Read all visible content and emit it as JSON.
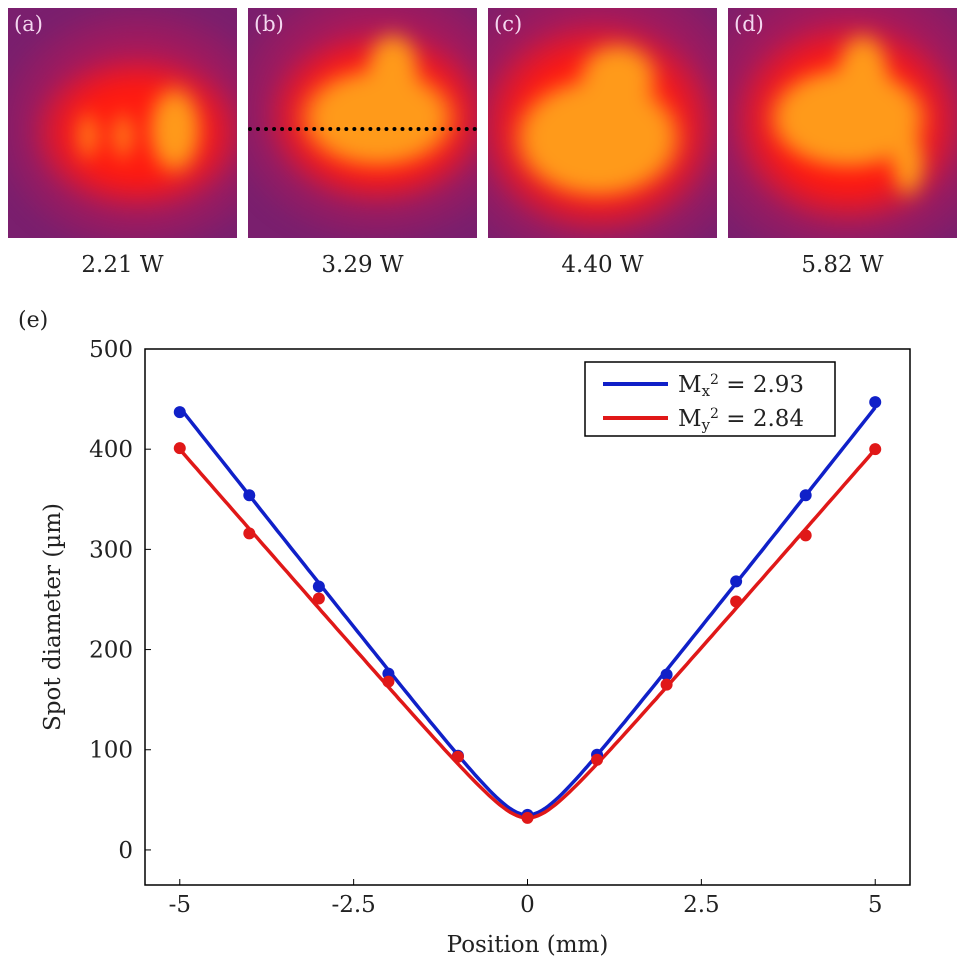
{
  "panels": [
    {
      "label": "(a)",
      "power": "2.21 W"
    },
    {
      "label": "(b)",
      "power": "3.29 W"
    },
    {
      "label": "(c)",
      "power": "4.40 W"
    },
    {
      "label": "(d)",
      "power": "5.82 W"
    }
  ],
  "heatmap_colors": {
    "background": "#7a1f6e",
    "mid": "#ff1a10",
    "peak": "#ff9a1a"
  },
  "chart_data": {
    "type": "scatter",
    "panel_label": "(e)",
    "xlabel": "Position (mm)",
    "ylabel": "Spot diameter (µm)",
    "xlim": [
      -5.5,
      5.5
    ],
    "ylim": [
      -35,
      500
    ],
    "xticks": [
      -5,
      -2.5,
      0,
      2.5,
      5
    ],
    "xtick_labels": [
      "-5",
      "-2.5",
      "0",
      "2.5",
      "5"
    ],
    "yticks": [
      0,
      100,
      200,
      300,
      400,
      500
    ],
    "ytick_labels": [
      "0",
      "100",
      "200",
      "300",
      "400",
      "500"
    ],
    "grid": false,
    "legend_placement": "top-right",
    "x": [
      -5,
      -4,
      -3,
      -2,
      -1,
      0,
      1,
      2,
      3,
      4,
      5
    ],
    "series": [
      {
        "name": "Mx² = 2.93",
        "legend_main": "M",
        "legend_sub": "x",
        "legend_rest": " = 2.93",
        "color": "#1020c8",
        "values": [
          437,
          354,
          263,
          176,
          94,
          35,
          95,
          175,
          268,
          354,
          447
        ]
      },
      {
        "name": "My² = 2.84",
        "legend_main": "M",
        "legend_sub": "y",
        "legend_rest": " = 2.84",
        "color": "#e01818",
        "values": [
          401,
          316,
          251,
          168,
          93,
          32,
          90,
          165,
          248,
          314,
          400
        ]
      }
    ]
  }
}
